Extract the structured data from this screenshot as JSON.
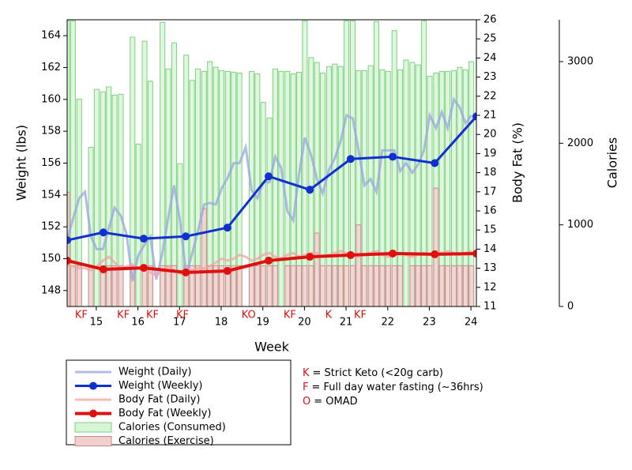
{
  "chart_data": {
    "type": "combo",
    "xlabel": "Week",
    "ylabel": "Weight (lbs)",
    "y2label": "Body Fat (%)",
    "y3label": "Calories",
    "xlim": [
      14.3,
      24.13
    ],
    "xticks": [
      15,
      16,
      17,
      18,
      19,
      20,
      21,
      22,
      23,
      24
    ],
    "ylim": [
      147,
      165
    ],
    "yticks": [
      148,
      150,
      152,
      154,
      156,
      158,
      160,
      162,
      164
    ],
    "y2lim": [
      11,
      26
    ],
    "y2ticks": [
      11,
      12,
      13,
      14,
      15,
      16,
      17,
      18,
      19,
      20,
      21,
      22,
      23,
      24,
      25,
      26
    ],
    "y3lim": [
      0,
      3513
    ],
    "y3ticks": [
      0,
      1000,
      2000,
      3000
    ],
    "x": [
      14.3,
      14.44,
      14.59,
      14.73,
      14.87,
      15.01,
      15.16,
      15.3,
      15.44,
      15.59,
      15.73,
      15.87,
      16.01,
      16.16,
      16.3,
      16.44,
      16.59,
      16.73,
      16.87,
      17.01,
      17.16,
      17.3,
      17.44,
      17.59,
      17.73,
      17.87,
      18.01,
      18.16,
      18.3,
      18.44,
      18.59,
      18.73,
      18.87,
      19.01,
      19.16,
      19.3,
      19.44,
      19.59,
      19.73,
      19.87,
      20.01,
      20.16,
      20.3,
      20.44,
      20.59,
      20.73,
      20.87,
      21.01,
      21.16,
      21.3,
      21.44,
      21.59,
      21.73,
      21.87,
      22.01,
      22.16,
      22.3,
      22.44,
      22.59,
      22.73,
      22.87,
      23.01,
      23.16,
      23.3,
      23.44,
      23.59,
      23.73,
      23.87,
      24.01
    ],
    "series": [
      {
        "name": "Calories (Consumed)",
        "type": "bar",
        "axis": "y3",
        "color": "#d6f5d6",
        "stroke": "#7fd07f",
        "values": [
          3500,
          3500,
          2540,
          0,
          1950,
          2660,
          2630,
          2690,
          2590,
          2600,
          0,
          3300,
          1990,
          3250,
          2760,
          0,
          3480,
          2910,
          3230,
          1750,
          3080,
          2770,
          2910,
          2880,
          3000,
          2930,
          2890,
          2880,
          2870,
          2860,
          0,
          2880,
          2850,
          2500,
          2310,
          2910,
          2880,
          2880,
          2850,
          2870,
          3500,
          3050,
          2990,
          2860,
          2940,
          2970,
          2940,
          3500,
          3500,
          2890,
          2890,
          2950,
          3490,
          2900,
          2880,
          3380,
          2900,
          3020,
          2990,
          2960,
          3500,
          2820,
          2860,
          2880,
          2880,
          2890,
          2930,
          2900,
          3000
        ]
      },
      {
        "name": "Calories (Exercise)",
        "type": "bar",
        "axis": "y3",
        "color": "#f2cfcf",
        "stroke": "#c98a8a",
        "values": [
          1400,
          500,
          500,
          0,
          500,
          0,
          500,
          500,
          500,
          500,
          0,
          500,
          0,
          500,
          500,
          0,
          500,
          500,
          500,
          0,
          500,
          500,
          500,
          1200,
          500,
          500,
          500,
          500,
          500,
          500,
          0,
          500,
          500,
          500,
          500,
          500,
          0,
          500,
          500,
          500,
          500,
          500,
          900,
          500,
          500,
          500,
          500,
          500,
          500,
          1000,
          500,
          500,
          500,
          500,
          500,
          500,
          500,
          0,
          500,
          500,
          500,
          500,
          1450,
          500,
          500,
          500,
          500,
          500,
          500
        ]
      },
      {
        "name": "Weight (Daily)",
        "type": "line",
        "axis": "y",
        "color": "#9aa6e2",
        "width": 3,
        "values": [
          151.2,
          152.5,
          153.8,
          154.2,
          151.4,
          150.6,
          150.6,
          151.9,
          153.2,
          152.7,
          151.5,
          148.6,
          150.2,
          150.9,
          151.4,
          148.7,
          150.4,
          152.6,
          154.6,
          152.4,
          149.0,
          150.3,
          151.7,
          153.4,
          153.5,
          153.4,
          154.4,
          155.1,
          156.0,
          156.0,
          157.0,
          154.3,
          153.8,
          154.8,
          154.8,
          156.4,
          155.7,
          153.0,
          152.4,
          155.3,
          157.6,
          156.5,
          155.0,
          154.1,
          155.6,
          156.3,
          157.4,
          159.0,
          158.8,
          156.8,
          154.6,
          155.0,
          154.2,
          156.8,
          156.8,
          156.8,
          155.5,
          156.0,
          155.4,
          155.9,
          156.8,
          159.0,
          158.2,
          159.2,
          158.2,
          160.0,
          159.5,
          158.5,
          159.0
        ]
      },
      {
        "name": "Body Fat (Daily)",
        "type": "line",
        "axis": "y2",
        "color": "#f2a4a4",
        "width": 3,
        "values": [
          13.2,
          13.1,
          13.0,
          13.0,
          12.9,
          13.1,
          13.4,
          13.6,
          13.3,
          13.0,
          13.1,
          13.2,
          13.0,
          12.9,
          12.8,
          12.6,
          12.9,
          13.1,
          12.9,
          12.7,
          12.8,
          12.9,
          13.0,
          13.0,
          13.1,
          13.3,
          13.5,
          13.4,
          13.5,
          13.7,
          13.6,
          13.4,
          13.5,
          13.7,
          13.8,
          13.6,
          13.5,
          13.7,
          13.8,
          13.6,
          13.7,
          13.8,
          13.8,
          13.6,
          13.7,
          13.8,
          13.9,
          13.8,
          13.7,
          13.6,
          13.7,
          13.8,
          13.9,
          13.7,
          13.6,
          13.7,
          13.8,
          13.7,
          13.6,
          13.7,
          13.8,
          13.7,
          13.8,
          13.8,
          13.9,
          13.8,
          13.7,
          13.8,
          13.9
        ]
      },
      {
        "name": "Weight (Weekly)",
        "type": "line",
        "axis": "y",
        "color": "#1030d0",
        "width": 3,
        "marker": true,
        "x": [
          14.3,
          15.17,
          16.14,
          17.15,
          18.15,
          19.14,
          20.13,
          21.11,
          22.12,
          23.13,
          24.13
        ],
        "values": [
          151.16,
          151.65,
          151.26,
          151.4,
          151.95,
          155.17,
          154.33,
          156.26,
          156.4,
          156.0,
          158.93
        ]
      },
      {
        "name": "Body Fat (Weekly)",
        "type": "line",
        "axis": "y2",
        "color": "#e01010",
        "width": 4,
        "marker": true,
        "x": [
          14.3,
          15.17,
          16.14,
          17.15,
          18.15,
          19.14,
          20.13,
          21.11,
          22.12,
          23.13,
          24.13
        ],
        "values": [
          13.4,
          12.94,
          13.02,
          12.78,
          12.86,
          13.4,
          13.6,
          13.69,
          13.77,
          13.73,
          13.77
        ]
      }
    ],
    "legend_order": [
      2,
      4,
      3,
      5,
      0,
      1
    ],
    "day_labels": [
      {
        "text": "KF",
        "x": 14.64
      },
      {
        "text": "KF",
        "x": 15.65
      },
      {
        "text": "KF",
        "x": 16.35
      },
      {
        "text": "KF",
        "x": 17.07
      },
      {
        "text": "KO",
        "x": 18.66
      },
      {
        "text": "KF",
        "x": 19.65
      },
      {
        "text": "K",
        "x": 20.58
      },
      {
        "text": "KF",
        "x": 21.34
      }
    ],
    "notes": [
      {
        "key": "K",
        "text": "= Strict Keto (<20g carb)"
      },
      {
        "key": "F",
        "text": "= Full day water fasting (~36hrs)"
      },
      {
        "key": "O",
        "text": "= OMAD"
      }
    ],
    "note_color": "#e01010"
  }
}
